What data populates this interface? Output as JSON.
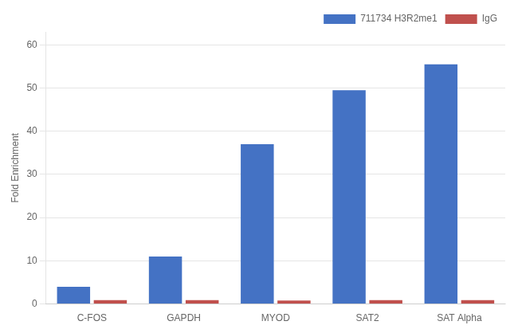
{
  "chart_data": {
    "type": "bar",
    "categories": [
      "C-FOS",
      "GAPDH",
      "MYOD",
      "SAT2",
      "SAT Alpha"
    ],
    "series": [
      {
        "name": "711734 H3R2me1",
        "color": "#4472C4",
        "values": [
          4.0,
          11.0,
          37.0,
          49.5,
          55.5
        ]
      },
      {
        "name": "IgG",
        "color": "#C0504D",
        "values": [
          0.9,
          0.9,
          0.8,
          0.9,
          0.9
        ]
      }
    ],
    "ylabel": "Fold Enrichment",
    "ylim": [
      0,
      63
    ],
    "yticks": [
      0,
      10,
      20,
      30,
      40,
      50,
      60
    ],
    "grid": true,
    "legend": "upper right"
  }
}
